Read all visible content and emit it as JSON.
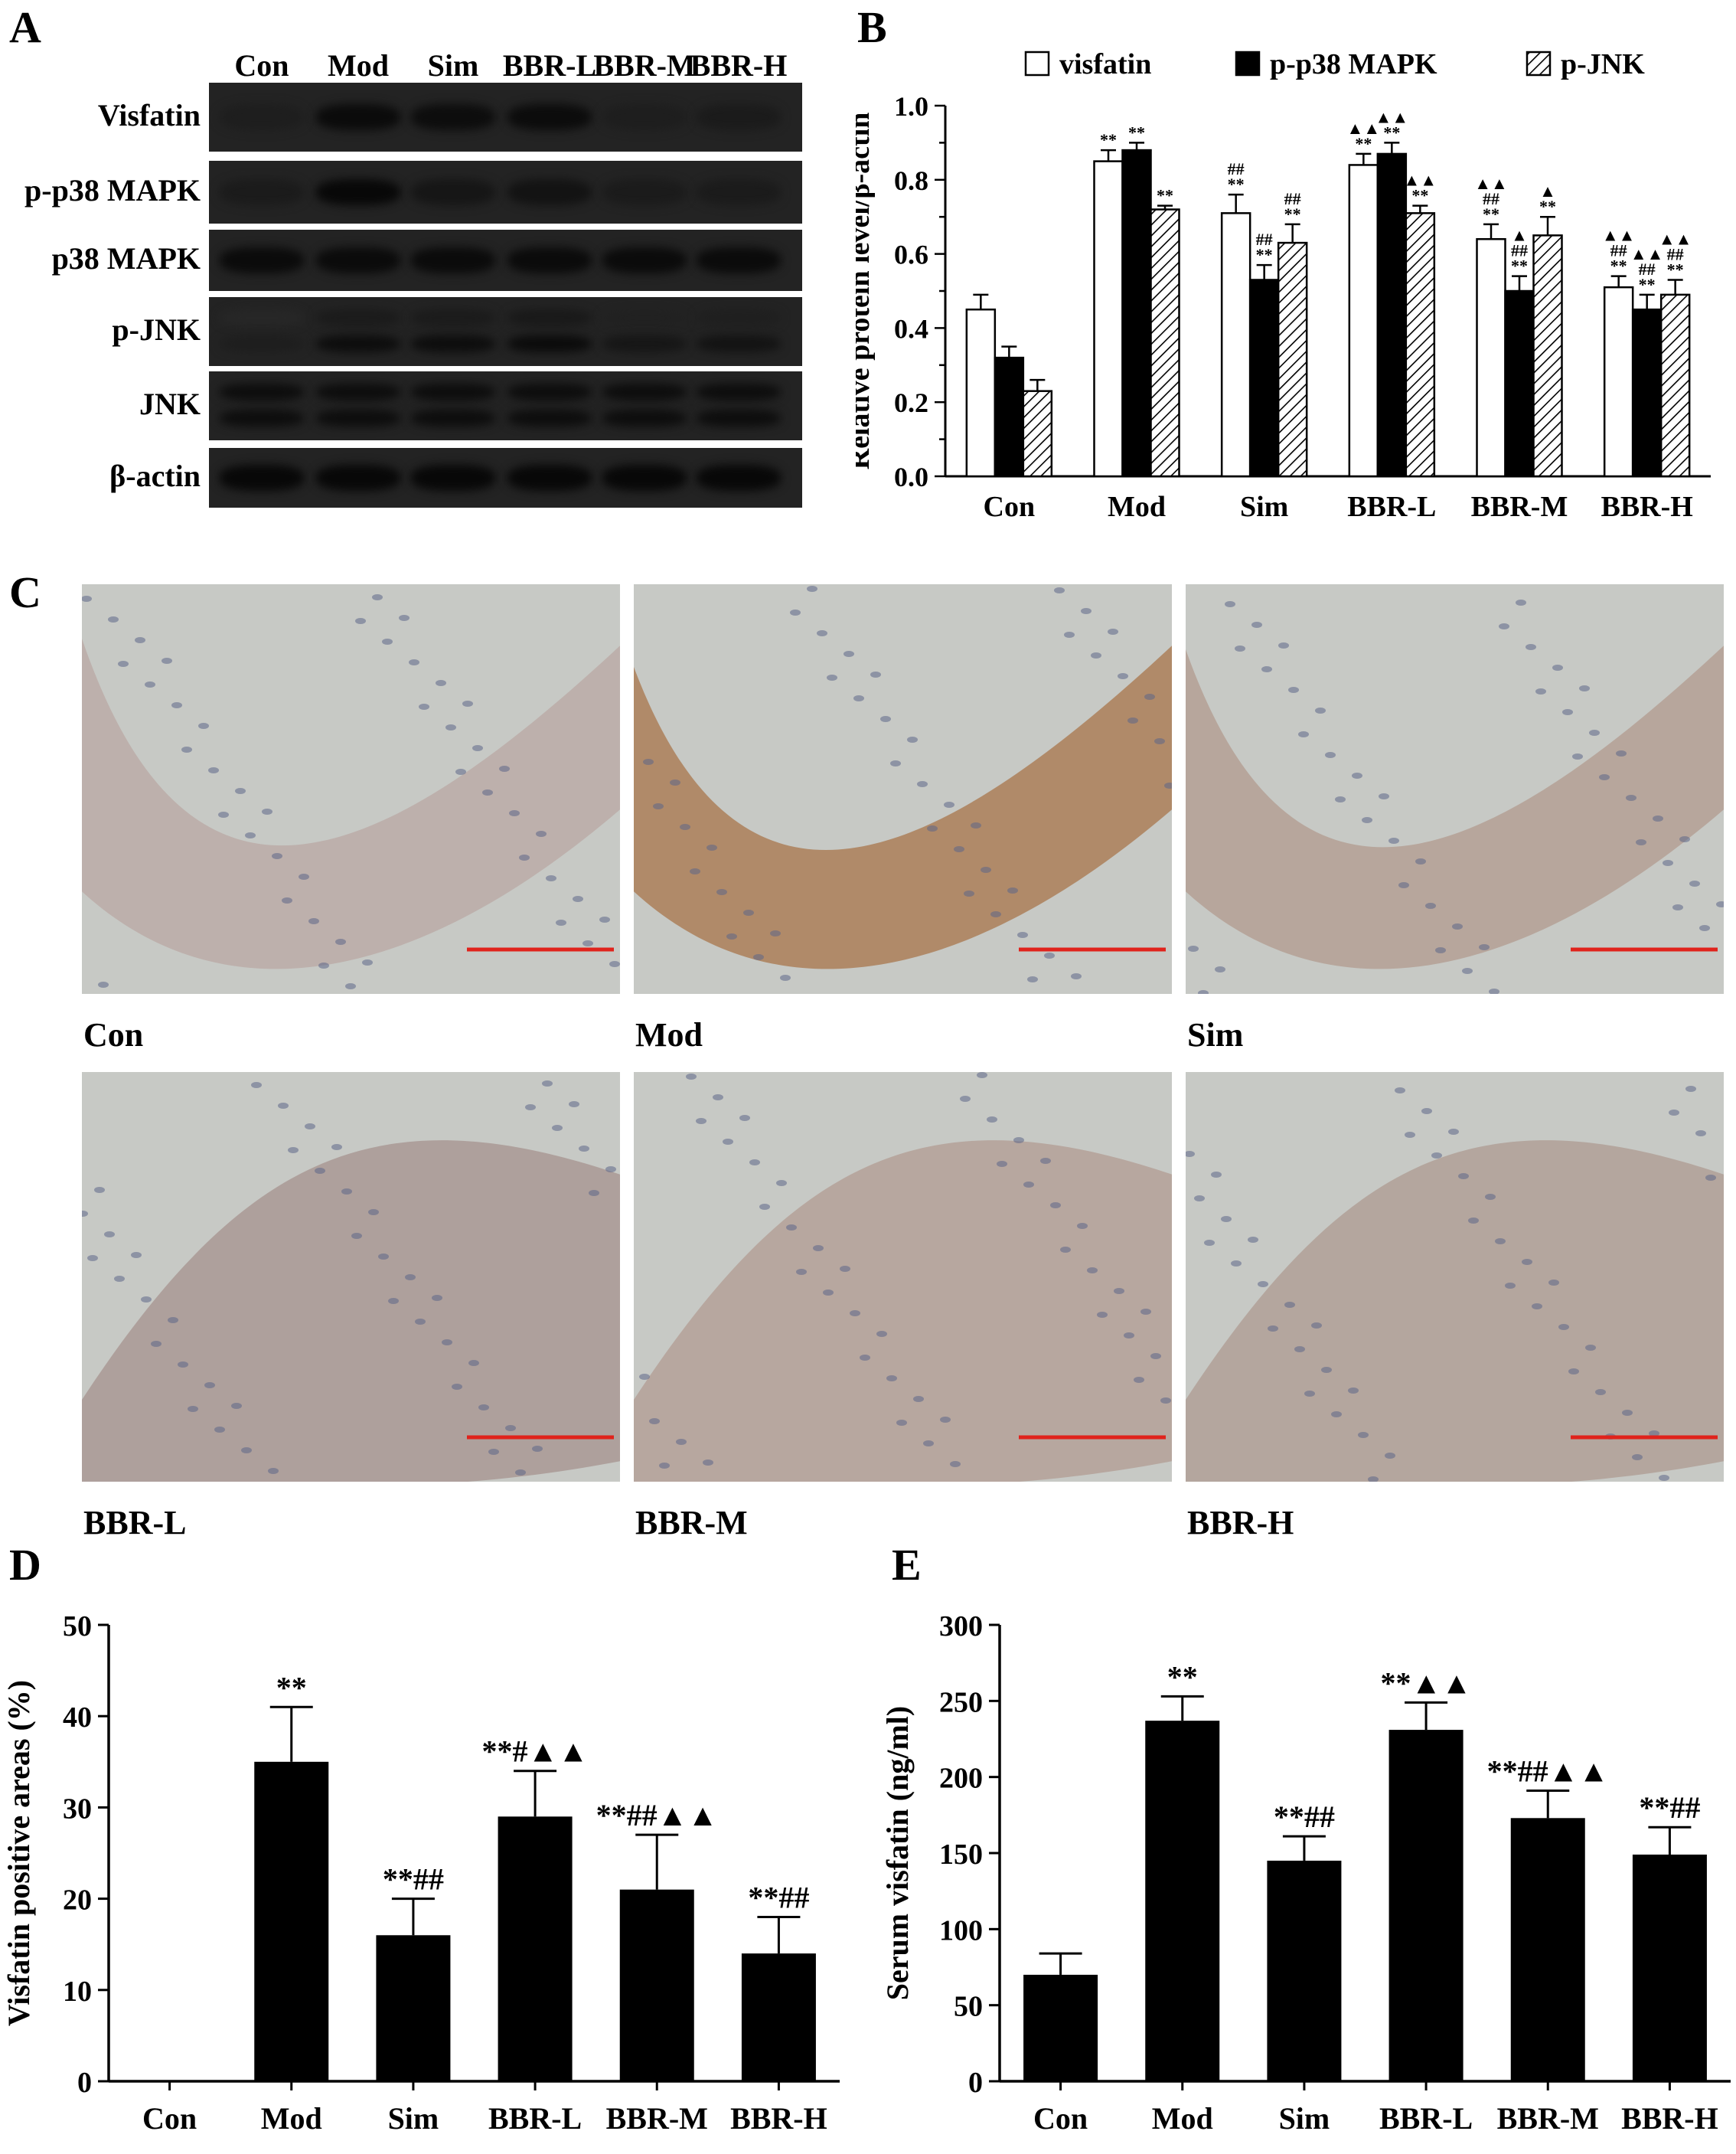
{
  "panels": {
    "A": {
      "letter": "A",
      "lanes": [
        "Con",
        "Mod",
        "Sim",
        "BBR-L",
        "BBR-M",
        "BBR-H"
      ],
      "rows": [
        {
          "label": "Visfatin",
          "intensity": [
            0.55,
            0.9,
            0.85,
            0.88,
            0.55,
            0.6
          ]
        },
        {
          "label": "p-p38 MAPK",
          "intensity": [
            0.6,
            0.95,
            0.7,
            0.75,
            0.6,
            0.6
          ]
        },
        {
          "label": "p38 MAPK",
          "intensity": [
            0.9,
            0.9,
            0.9,
            0.9,
            0.9,
            0.9
          ]
        },
        {
          "label": "p-JNK",
          "intensity": [
            0.55,
            0.85,
            0.85,
            0.9,
            0.7,
            0.75
          ]
        },
        {
          "label": "JNK",
          "intensity": [
            0.85,
            0.85,
            0.85,
            0.85,
            0.85,
            0.85
          ]
        },
        {
          "label": "β-actin",
          "intensity": [
            0.95,
            0.95,
            0.95,
            0.95,
            0.95,
            0.95
          ]
        }
      ]
    },
    "B": {
      "letter": "B"
    },
    "C": {
      "letter": "C",
      "images": [
        {
          "label": "Con",
          "stain": "#b9a7a3"
        },
        {
          "label": "Mod",
          "stain": "#a8744a"
        },
        {
          "label": "Sim",
          "stain": "#b19a8e"
        },
        {
          "label": "BBR-L",
          "stain": "#a6918e"
        },
        {
          "label": "BBR-M",
          "stain": "#b19b92"
        },
        {
          "label": "BBR-H",
          "stain": "#ad9990"
        }
      ]
    },
    "D": {
      "letter": "D"
    },
    "E": {
      "letter": "E"
    }
  },
  "chart_data": [
    {
      "panel": "B",
      "type": "bar",
      "categories": [
        "Con",
        "Mod",
        "Sim",
        "BBR-L",
        "BBR-M",
        "BBR-H"
      ],
      "ylabel": "Relative protein level/β-actin",
      "ylim": [
        0,
        1.0
      ],
      "yticks": [
        "0.0",
        "0.2",
        "0.4",
        "0.6",
        "0.8",
        "1.0"
      ],
      "legend_position": "top",
      "series": [
        {
          "name": "visfatin",
          "fill": "#ffffff",
          "pattern": "none",
          "values": [
            0.45,
            0.85,
            0.71,
            0.84,
            0.64,
            0.51
          ],
          "errors": [
            0.04,
            0.03,
            0.05,
            0.03,
            0.04,
            0.03
          ],
          "annotations": [
            "",
            "**",
            "##\n**",
            "▲▲\n**",
            "▲▲\n##\n**",
            "▲▲\n##\n**"
          ]
        },
        {
          "name": "p-p38 MAPK",
          "fill": "#000000",
          "pattern": "none",
          "values": [
            0.32,
            0.88,
            0.53,
            0.87,
            0.5,
            0.45
          ],
          "errors": [
            0.03,
            0.02,
            0.04,
            0.03,
            0.04,
            0.04
          ],
          "annotations": [
            "",
            "**",
            "##\n**",
            "▲▲\n**",
            "▲\n##\n**",
            "▲▲\n##\n**"
          ]
        },
        {
          "name": "p-JNK",
          "fill": "#ffffff",
          "pattern": "hatch",
          "values": [
            0.23,
            0.72,
            0.63,
            0.71,
            0.65,
            0.49
          ],
          "errors": [
            0.03,
            0.01,
            0.05,
            0.02,
            0.05,
            0.04
          ],
          "annotations": [
            "",
            "**",
            "##\n**",
            "▲▲\n**",
            "▲\n**",
            "▲▲\n##\n**"
          ]
        }
      ]
    },
    {
      "panel": "D",
      "type": "bar",
      "categories": [
        "Con",
        "Mod",
        "Sim",
        "BBR-L",
        "BBR-M",
        "BBR-H"
      ],
      "ylabel": "Visfatin positive areas (%)",
      "ylim": [
        0,
        50
      ],
      "yticks": [
        "0",
        "10",
        "20",
        "30",
        "40",
        "50"
      ],
      "values": [
        0,
        35,
        16,
        29,
        21,
        14
      ],
      "errors": [
        0,
        6,
        4,
        5,
        6,
        4
      ],
      "annotations": [
        "",
        "**",
        "**##",
        "**#▲▲",
        "**##▲▲",
        "**##"
      ]
    },
    {
      "panel": "E",
      "type": "bar",
      "categories": [
        "Con",
        "Mod",
        "Sim",
        "BBR-L",
        "BBR-M",
        "BBR-H"
      ],
      "ylabel": "Serum visfatin  (ng/ml)",
      "ylim": [
        0,
        300
      ],
      "yticks": [
        "0",
        "50",
        "100",
        "150",
        "200",
        "250",
        "300"
      ],
      "values": [
        70,
        237,
        145,
        231,
        173,
        149
      ],
      "errors": [
        14,
        16,
        16,
        18,
        18,
        18
      ],
      "annotations": [
        "",
        "**",
        "**##",
        "**▲▲",
        "**##▲▲",
        "**##"
      ]
    }
  ]
}
